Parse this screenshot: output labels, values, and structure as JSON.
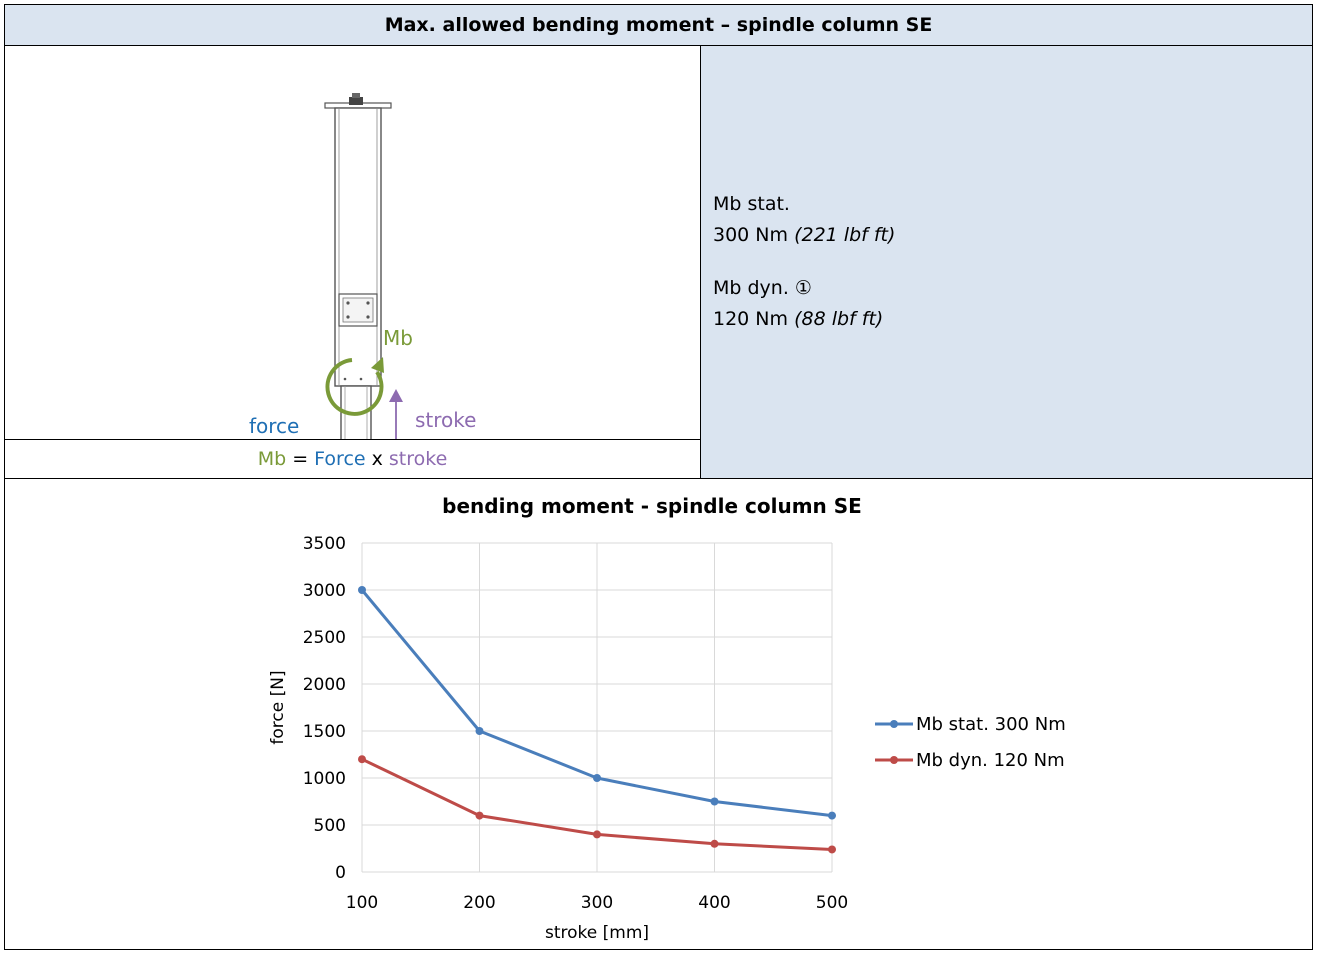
{
  "header": {
    "title": "Max. allowed bending moment – spindle column SE"
  },
  "illustration": {
    "mb_label": "Mb",
    "force_label": "force",
    "stroke_label": "stroke"
  },
  "formula": {
    "mb": "Mb",
    "eq": " = ",
    "force": "Force",
    "x": " x ",
    "stroke": "stroke"
  },
  "info": {
    "stat_label": "Mb stat.",
    "stat_value": "300 Nm ",
    "stat_imperial": "(221 lbf ft)",
    "dyn_label": "Mb dyn. ①",
    "dyn_value": "120 Nm ",
    "dyn_imperial": "(88 lbf ft)"
  },
  "colors": {
    "header_bg": "#dae4f0",
    "series_stat": "#4a7ebb",
    "series_dyn": "#be4b48",
    "mb_green": "#7a9a38",
    "force_blue": "#1f6fb4",
    "stroke_purple": "#8d6bb0"
  },
  "chart_data": {
    "type": "line",
    "title": "bending moment - spindle column SE",
    "xlabel": "stroke [mm]",
    "ylabel": "force [N]",
    "x": [
      100,
      200,
      300,
      400,
      500
    ],
    "xlim": [
      100,
      500
    ],
    "ylim": [
      0,
      3500
    ],
    "yticks": [
      0,
      500,
      1000,
      1500,
      2000,
      2500,
      3000,
      3500
    ],
    "grid": true,
    "legend": "right",
    "series": [
      {
        "name": "Mb stat. 300 Nm",
        "color": "#4a7ebb",
        "values": [
          3000,
          1500,
          1000,
          750,
          600
        ]
      },
      {
        "name": "Mb dyn. 120 Nm",
        "color": "#be4b48",
        "values": [
          1200,
          600,
          400,
          300,
          240
        ]
      }
    ]
  }
}
